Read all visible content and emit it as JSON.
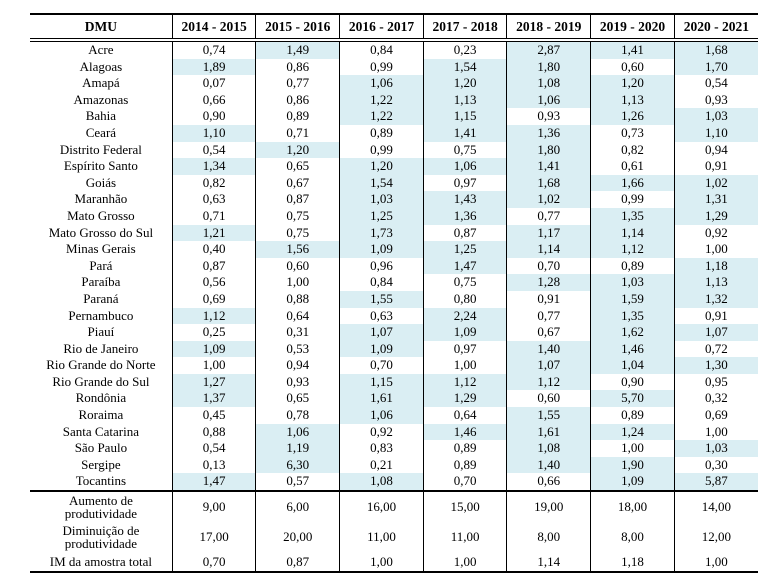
{
  "table": {
    "highlight_color": "#daeef3",
    "highlight_rule": "cell value greater than 1,00 gets pale blue background (state rows only)",
    "header": [
      "DMU",
      "2014 - 2015",
      "2015 - 2016",
      "2016 - 2017",
      "2017 - 2018",
      "2018 - 2019",
      "2019 - 2020",
      "2020 - 2021"
    ],
    "rows": [
      {
        "dmu": "Acre",
        "values": [
          "0,74",
          "1,49",
          "0,84",
          "0,23",
          "2,87",
          "1,41",
          "1,68"
        ]
      },
      {
        "dmu": "Alagoas",
        "values": [
          "1,89",
          "0,86",
          "0,99",
          "1,54",
          "1,80",
          "0,60",
          "1,70"
        ]
      },
      {
        "dmu": "Amapá",
        "values": [
          "0,07",
          "0,77",
          "1,06",
          "1,20",
          "1,08",
          "1,20",
          "0,54"
        ]
      },
      {
        "dmu": "Amazonas",
        "values": [
          "0,66",
          "0,86",
          "1,22",
          "1,13",
          "1,06",
          "1,13",
          "0,93"
        ]
      },
      {
        "dmu": "Bahia",
        "values": [
          "0,90",
          "0,89",
          "1,22",
          "1,15",
          "0,93",
          "1,26",
          "1,03"
        ]
      },
      {
        "dmu": "Ceará",
        "values": [
          "1,10",
          "0,71",
          "0,89",
          "1,41",
          "1,36",
          "0,73",
          "1,10"
        ]
      },
      {
        "dmu": "Distrito Federal",
        "values": [
          "0,54",
          "1,20",
          "0,99",
          "0,75",
          "1,80",
          "0,82",
          "0,94"
        ]
      },
      {
        "dmu": "Espírito Santo",
        "values": [
          "1,34",
          "0,65",
          "1,20",
          "1,06",
          "1,41",
          "0,61",
          "0,91"
        ]
      },
      {
        "dmu": "Goiás",
        "values": [
          "0,82",
          "0,67",
          "1,54",
          "0,97",
          "1,68",
          "1,66",
          "1,02"
        ]
      },
      {
        "dmu": "Maranhão",
        "values": [
          "0,63",
          "0,87",
          "1,03",
          "1,43",
          "1,02",
          "0,99",
          "1,31"
        ]
      },
      {
        "dmu": "Mato Grosso",
        "values": [
          "0,71",
          "0,75",
          "1,25",
          "1,36",
          "0,77",
          "1,35",
          "1,29"
        ]
      },
      {
        "dmu": "Mato Grosso do Sul",
        "values": [
          "1,21",
          "0,75",
          "1,73",
          "0,87",
          "1,17",
          "1,14",
          "0,92"
        ]
      },
      {
        "dmu": "Minas Gerais",
        "values": [
          "0,40",
          "1,56",
          "1,09",
          "1,25",
          "1,14",
          "1,12",
          "1,00"
        ]
      },
      {
        "dmu": "Pará",
        "values": [
          "0,87",
          "0,60",
          "0,96",
          "1,47",
          "0,70",
          "0,89",
          "1,18"
        ]
      },
      {
        "dmu": "Paraíba",
        "values": [
          "0,56",
          "1,00",
          "0,84",
          "0,75",
          "1,28",
          "1,03",
          "1,13"
        ]
      },
      {
        "dmu": "Paraná",
        "values": [
          "0,69",
          "0,88",
          "1,55",
          "0,80",
          "0,91",
          "1,59",
          "1,32"
        ]
      },
      {
        "dmu": "Pernambuco",
        "values": [
          "1,12",
          "0,64",
          "0,63",
          "2,24",
          "0,77",
          "1,35",
          "0,91"
        ]
      },
      {
        "dmu": "Piauí",
        "values": [
          "0,25",
          "0,31",
          "1,07",
          "1,09",
          "0,67",
          "1,62",
          "1,07"
        ]
      },
      {
        "dmu": "Rio de Janeiro",
        "values": [
          "1,09",
          "0,53",
          "1,09",
          "0,97",
          "1,40",
          "1,46",
          "0,72"
        ]
      },
      {
        "dmu": "Rio Grande do Norte",
        "values": [
          "1,00",
          "0,94",
          "0,70",
          "1,00",
          "1,07",
          "1,04",
          "1,30"
        ]
      },
      {
        "dmu": "Rio Grande do Sul",
        "values": [
          "1,27",
          "0,93",
          "1,15",
          "1,12",
          "1,12",
          "0,90",
          "0,95"
        ]
      },
      {
        "dmu": "Rondônia",
        "values": [
          "1,37",
          "0,65",
          "1,61",
          "1,29",
          "0,60",
          "5,70",
          "0,32"
        ]
      },
      {
        "dmu": "Roraima",
        "values": [
          "0,45",
          "0,78",
          "1,06",
          "0,64",
          "1,55",
          "0,89",
          "0,69"
        ]
      },
      {
        "dmu": "Santa Catarina",
        "values": [
          "0,88",
          "1,06",
          "0,92",
          "1,46",
          "1,61",
          "1,24",
          "1,00"
        ]
      },
      {
        "dmu": "São Paulo",
        "values": [
          "0,54",
          "1,19",
          "0,83",
          "0,89",
          "1,08",
          "1,00",
          "1,03"
        ]
      },
      {
        "dmu": "Sergipe",
        "values": [
          "0,13",
          "6,30",
          "0,21",
          "0,89",
          "1,40",
          "1,90",
          "0,30"
        ]
      },
      {
        "dmu": "Tocantins",
        "values": [
          "1,47",
          "0,57",
          "1,08",
          "0,70",
          "0,66",
          "1,09",
          "5,87"
        ]
      }
    ],
    "summary_rows": [
      {
        "label": "Aumento de produtividade",
        "values": [
          "9,00",
          "6,00",
          "16,00",
          "15,00",
          "19,00",
          "18,00",
          "14,00"
        ]
      },
      {
        "label": "Diminuição de produtividade",
        "values": [
          "17,00",
          "20,00",
          "11,00",
          "11,00",
          "8,00",
          "8,00",
          "12,00"
        ]
      },
      {
        "label": "IM da amostra total",
        "values": [
          "0,70",
          "0,87",
          "1,00",
          "1,00",
          "1,14",
          "1,18",
          "1,00"
        ]
      }
    ]
  }
}
